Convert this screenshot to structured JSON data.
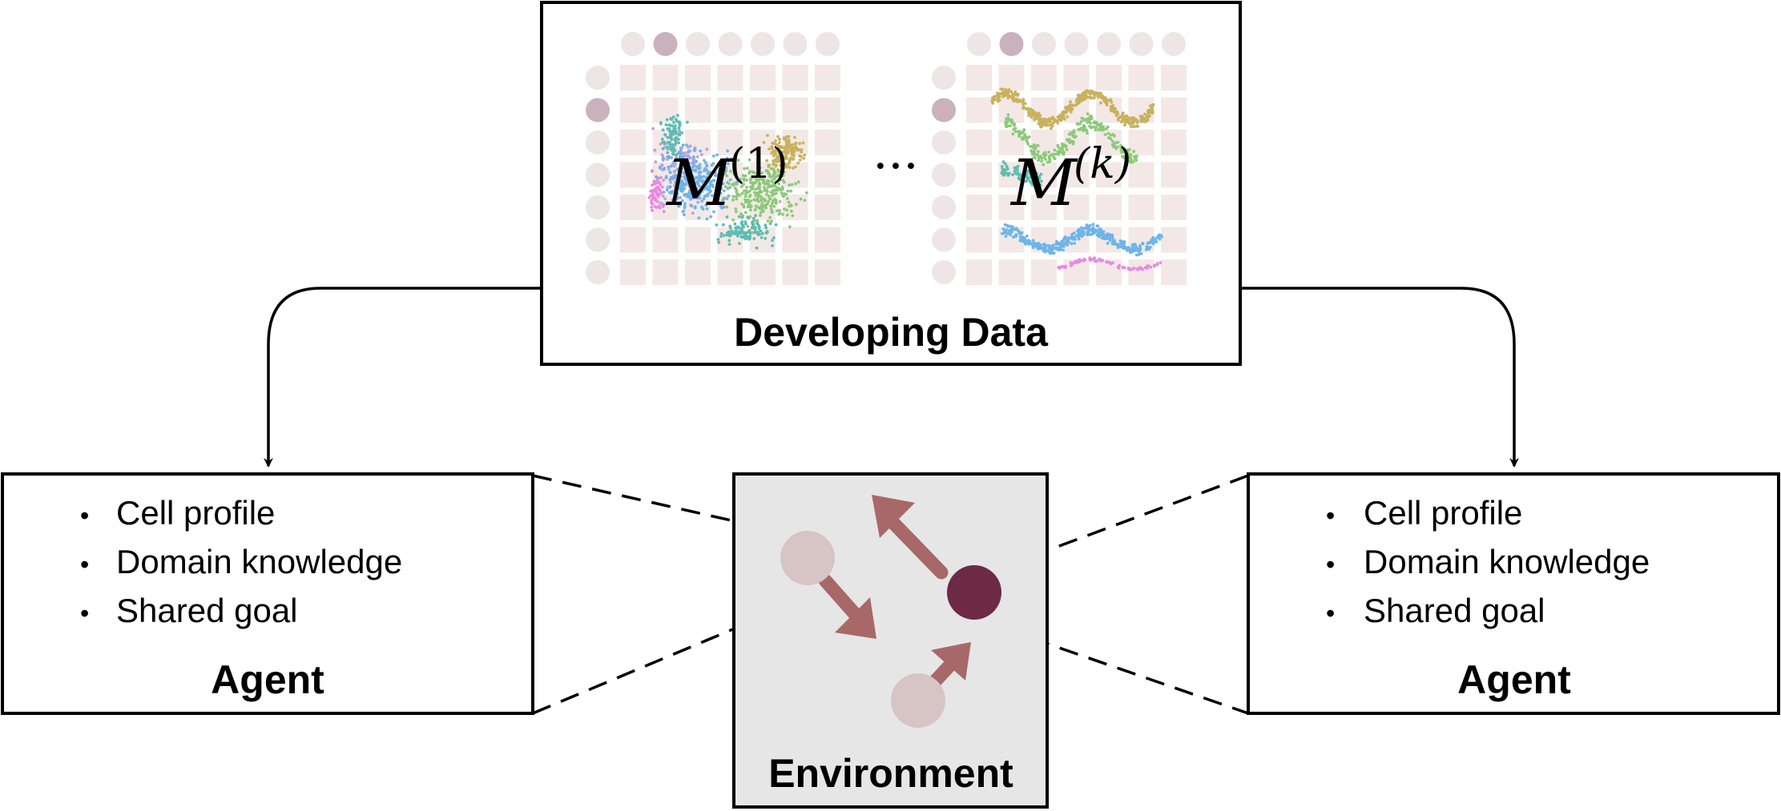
{
  "developing_data": {
    "title": "Developing Data",
    "matrix_first": {
      "symbol": "M",
      "superscript": "(1)"
    },
    "ellipsis": "···",
    "matrix_last": {
      "symbol": "M",
      "superscript": "(k)"
    }
  },
  "agent_left": {
    "title": "Agent",
    "items": [
      "Cell profile",
      "Domain knowledge",
      "Shared goal"
    ]
  },
  "agent_right": {
    "title": "Agent",
    "items": [
      "Cell profile",
      "Domain knowledge",
      "Shared goal"
    ]
  },
  "environment": {
    "title": "Environment"
  },
  "colors": {
    "grid_cell": "#f3e8e6",
    "grid_header": "#eee5e5",
    "grid_header_selected": "#cab2bd",
    "agent_active": "#6e2a45",
    "agent_inactive": "#d7c4c4",
    "arrow": "#a86868",
    "environment_bg": "#e6e6e6",
    "cluster_colors": [
      "#b0a5e0",
      "#6db5e8",
      "#5fbcb1",
      "#8dc97a",
      "#c9b15e",
      "#e88adf"
    ]
  }
}
